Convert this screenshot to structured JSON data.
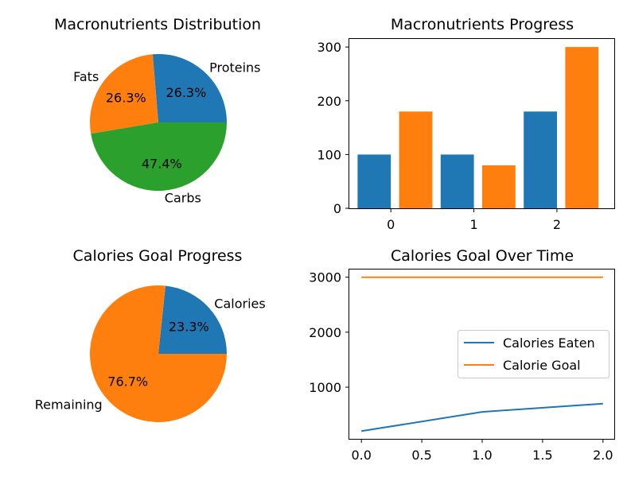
{
  "colors": {
    "blue": "#1f77b4",
    "orange": "#ff7f0e",
    "green": "#2ca02c",
    "axis": "#000000"
  },
  "chart_data": [
    {
      "id": "macronutrients-distribution",
      "type": "pie",
      "title": "Macronutrients Distribution",
      "slices": [
        {
          "label": "Proteins",
          "value": 100,
          "pct_label": "26.3%",
          "color": "#1f77b4"
        },
        {
          "label": "Fats",
          "value": 100,
          "pct_label": "26.3%",
          "color": "#ff7f0e"
        },
        {
          "label": "Carbs",
          "value": 180,
          "pct_label": "47.4%",
          "color": "#2ca02c"
        }
      ],
      "start_angle_deg": 0,
      "direction": "counterclockwise"
    },
    {
      "id": "macronutrients-progress",
      "type": "bar",
      "title": "Macronutrients Progress",
      "bars": [
        {
          "x": -0.2,
          "value": 100,
          "color": "#1f77b4"
        },
        {
          "x": 0.3,
          "value": 180,
          "color": "#ff7f0e"
        },
        {
          "x": 0.8,
          "value": 100,
          "color": "#1f77b4"
        },
        {
          "x": 1.3,
          "value": 80,
          "color": "#ff7f0e"
        },
        {
          "x": 1.8,
          "value": 180,
          "color": "#1f77b4"
        },
        {
          "x": 2.3,
          "value": 300,
          "color": "#ff7f0e"
        }
      ],
      "bar_width": 0.4,
      "xlim": [
        -0.5,
        2.7
      ],
      "ylim": [
        0,
        315
      ],
      "xticks": [
        0,
        1,
        2
      ],
      "yticks": [
        0,
        100,
        200,
        300
      ]
    },
    {
      "id": "calories-goal-progress",
      "type": "pie",
      "title": "Calories Goal Progress",
      "slices": [
        {
          "label": "Calories",
          "value": 700,
          "pct_label": "23.3%",
          "color": "#1f77b4"
        },
        {
          "label": "Remaining",
          "value": 2300,
          "pct_label": "76.7%",
          "color": "#ff7f0e"
        }
      ],
      "start_angle_deg": 0,
      "direction": "counterclockwise"
    },
    {
      "id": "calories-goal-over-time",
      "type": "line",
      "title": "Calories Goal Over Time",
      "x": [
        0,
        1,
        2
      ],
      "series": [
        {
          "name": "Calories Eaten",
          "values": [
            200,
            550,
            700
          ],
          "color": "#1f77b4"
        },
        {
          "name": "Calorie Goal",
          "values": [
            3000,
            3000,
            3000
          ],
          "color": "#ff7f0e"
        }
      ],
      "xlim": [
        -0.1,
        2.1
      ],
      "ylim": [
        60,
        3140
      ],
      "xticks": [
        0.0,
        0.5,
        1.0,
        1.5,
        2.0
      ],
      "xtick_labels": [
        "0.0",
        "0.5",
        "1.0",
        "1.5",
        "2.0"
      ],
      "yticks": [
        1000,
        2000,
        3000
      ],
      "legend": "center-right"
    }
  ]
}
